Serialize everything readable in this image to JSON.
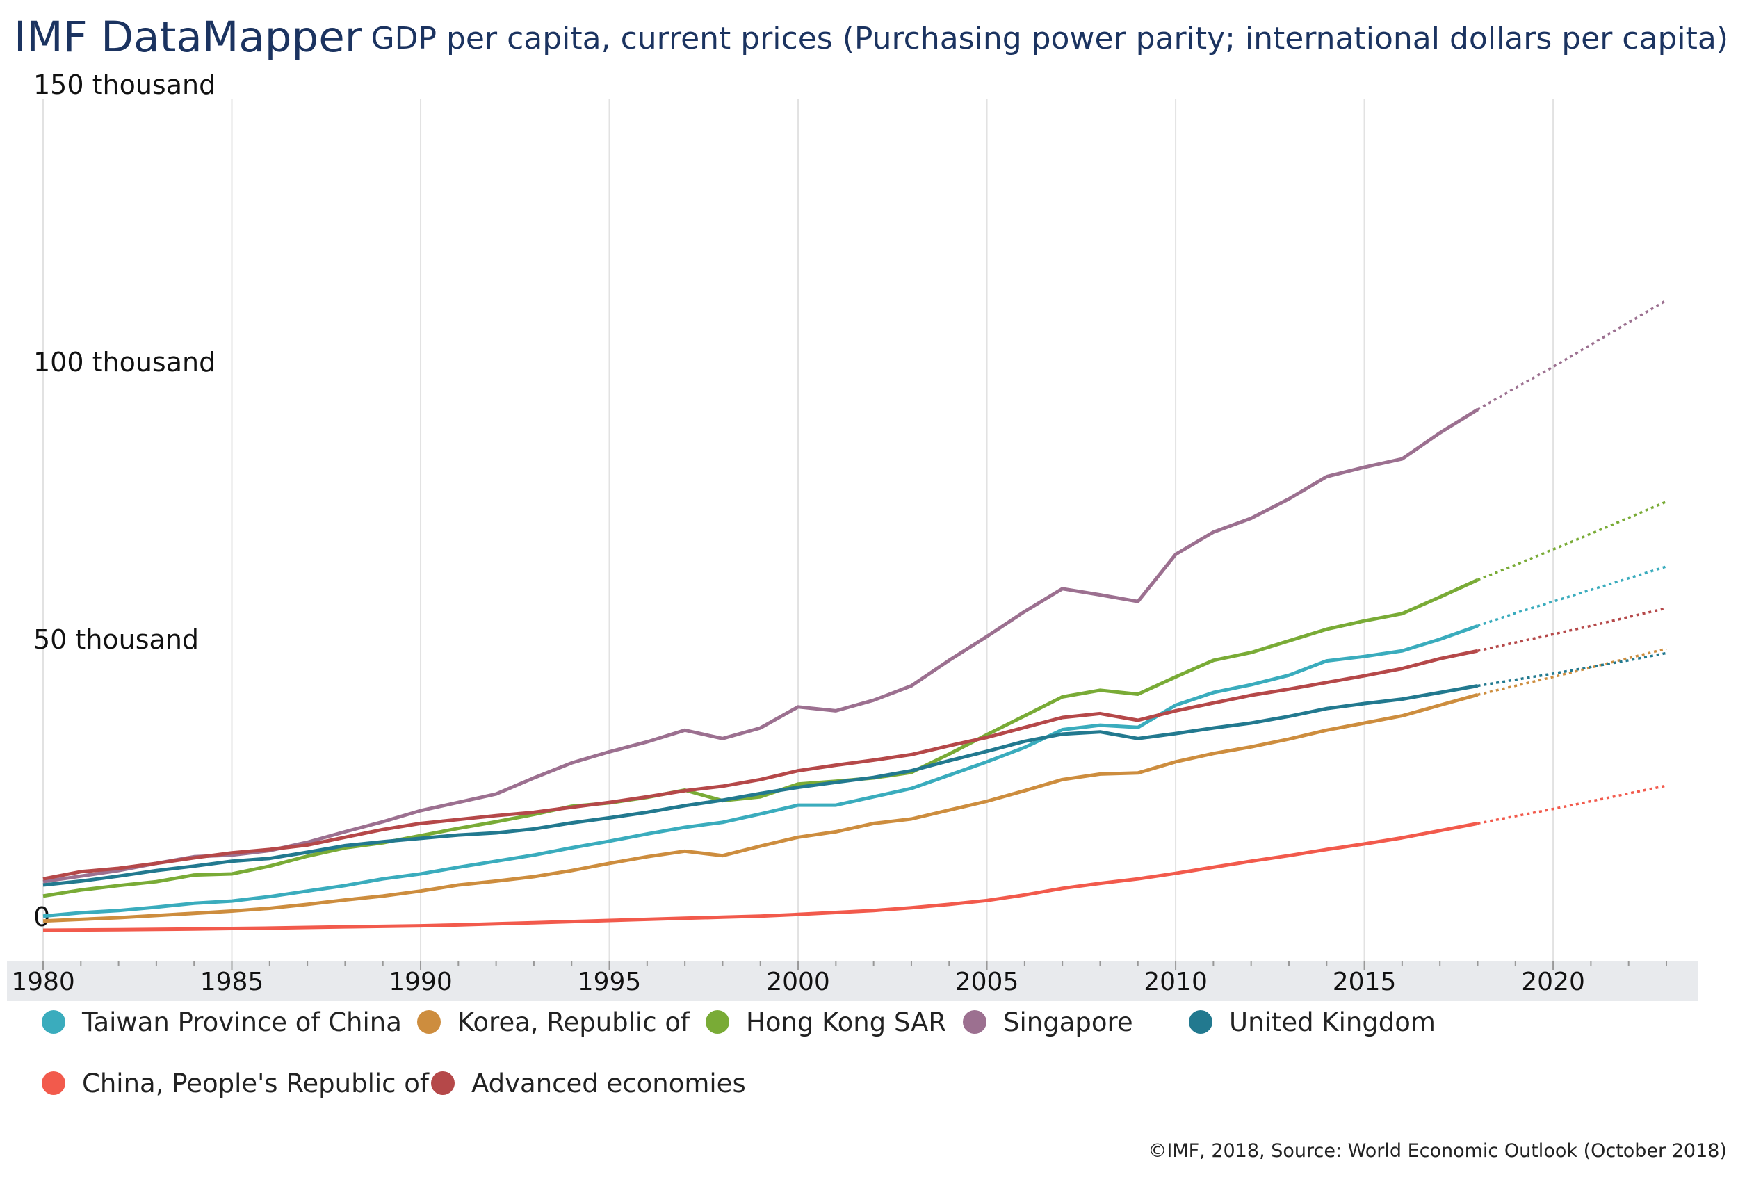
{
  "header": {
    "brand": "IMF DataMapper",
    "chart_title": "GDP per capita, current prices (Purchasing power parity; international dollars per capita)"
  },
  "footer": {
    "source": "©IMF, 2018, Source: World Economic Outlook (October 2018)"
  },
  "chart_data": {
    "type": "line",
    "title": "GDP per capita, current prices (Purchasing power parity; international dollars per capita)",
    "xlabel": "",
    "ylabel": "",
    "xlim": [
      1980,
      2023
    ],
    "ylim": [
      0,
      150000
    ],
    "x_ticks": [
      1980,
      1985,
      1990,
      1995,
      2000,
      2005,
      2010,
      2015,
      2020
    ],
    "y_ticks": [
      {
        "value": 0,
        "label": "0"
      },
      {
        "value": 50000,
        "label": "50 thousand"
      },
      {
        "value": 100000,
        "label": "100 thousand"
      },
      {
        "value": 150000,
        "label": "150 thousand"
      }
    ],
    "grid": "vertical",
    "actual_until": 2018,
    "projection_style": "dotted",
    "x": [
      1980,
      1981,
      1982,
      1983,
      1984,
      1985,
      1986,
      1987,
      1988,
      1989,
      1990,
      1991,
      1992,
      1993,
      1994,
      1995,
      1996,
      1997,
      1998,
      1999,
      2000,
      2001,
      2002,
      2003,
      2004,
      2005,
      2006,
      2007,
      2008,
      2009,
      2010,
      2011,
      2012,
      2013,
      2014,
      2015,
      2016,
      2017,
      2018,
      2019,
      2020,
      2021,
      2022,
      2023
    ],
    "series": [
      {
        "name": "Taiwan Province of China",
        "color": "#3aacbd",
        "values": [
          2800,
          3400,
          3800,
          4400,
          5100,
          5500,
          6300,
          7300,
          8300,
          9500,
          10400,
          11600,
          12700,
          13800,
          15100,
          16300,
          17600,
          18800,
          19700,
          21200,
          22800,
          22800,
          24300,
          25800,
          28200,
          30600,
          33200,
          36400,
          37200,
          36800,
          40800,
          43100,
          44500,
          46200,
          48800,
          49600,
          50600,
          52700,
          55100,
          57400,
          59500,
          61600,
          63700,
          65800
        ]
      },
      {
        "name": "Korea, Republic of",
        "color": "#cd8d3e",
        "values": [
          1900,
          2200,
          2500,
          2900,
          3300,
          3700,
          4200,
          4900,
          5700,
          6400,
          7300,
          8400,
          9100,
          9900,
          11000,
          12300,
          13500,
          14500,
          13700,
          15400,
          17000,
          18000,
          19500,
          20300,
          21900,
          23500,
          25400,
          27400,
          28400,
          28600,
          30600,
          32100,
          33300,
          34700,
          36300,
          37600,
          38900,
          40800,
          42700,
          44300,
          45900,
          47600,
          49300,
          51000
        ]
      },
      {
        "name": "Hong Kong SAR",
        "color": "#79ab36",
        "values": [
          6400,
          7500,
          8300,
          9000,
          10200,
          10400,
          11800,
          13600,
          15100,
          16000,
          17300,
          18600,
          19800,
          21100,
          22600,
          23200,
          24200,
          25500,
          23600,
          24300,
          26600,
          27100,
          27700,
          28700,
          32000,
          35500,
          38900,
          42300,
          43500,
          42800,
          45900,
          48900,
          50300,
          52400,
          54500,
          56000,
          57300,
          60300,
          63400,
          66100,
          68900,
          71700,
          74600,
          77500
        ]
      },
      {
        "name": "Singapore",
        "color": "#9c7090",
        "values": [
          9000,
          10000,
          11000,
          12300,
          13500,
          13800,
          14600,
          16100,
          18000,
          19800,
          21800,
          23300,
          24800,
          27700,
          30400,
          32400,
          34200,
          36300,
          34800,
          36700,
          40500,
          39800,
          41700,
          44300,
          48900,
          53200,
          57700,
          61800,
          60700,
          59500,
          68000,
          72000,
          74500,
          78000,
          82000,
          83700,
          85200,
          89900,
          94100,
          98000,
          101800,
          105800,
          109800,
          113800
        ]
      },
      {
        "name": "United Kingdom",
        "color": "#22798f",
        "values": [
          8400,
          9100,
          10000,
          11000,
          11800,
          12700,
          13200,
          14300,
          15500,
          16200,
          16800,
          17400,
          17800,
          18500,
          19600,
          20500,
          21500,
          22700,
          23700,
          24900,
          26000,
          26900,
          27800,
          29000,
          30800,
          32500,
          34300,
          35600,
          36000,
          34800,
          35700,
          36700,
          37600,
          38800,
          40200,
          41100,
          41900,
          43100,
          44300,
          45400,
          46500,
          47700,
          48900,
          50200
        ]
      },
      {
        "name": "China, People's Republic of",
        "color": "#f25a4c",
        "values": [
          250,
          300,
          350,
          400,
          480,
          560,
          640,
          750,
          860,
          950,
          1050,
          1200,
          1400,
          1600,
          1800,
          2000,
          2200,
          2400,
          2600,
          2800,
          3100,
          3450,
          3800,
          4300,
          4900,
          5600,
          6600,
          7800,
          8700,
          9500,
          10500,
          11600,
          12700,
          13700,
          14800,
          15800,
          16900,
          18200,
          19500,
          20800,
          22100,
          23500,
          24900,
          26300
        ]
      },
      {
        "name": "Advanced economies",
        "color": "#b54849",
        "values": [
          9500,
          10800,
          11400,
          12300,
          13300,
          14200,
          14800,
          15600,
          17000,
          18400,
          19500,
          20200,
          20900,
          21500,
          22400,
          23300,
          24300,
          25400,
          26200,
          27400,
          29000,
          30000,
          30900,
          31900,
          33500,
          35000,
          36800,
          38600,
          39300,
          38100,
          39800,
          41200,
          42600,
          43700,
          44900,
          46100,
          47400,
          49200,
          50600,
          52100,
          53600,
          55100,
          56700,
          58300
        ]
      }
    ]
  }
}
